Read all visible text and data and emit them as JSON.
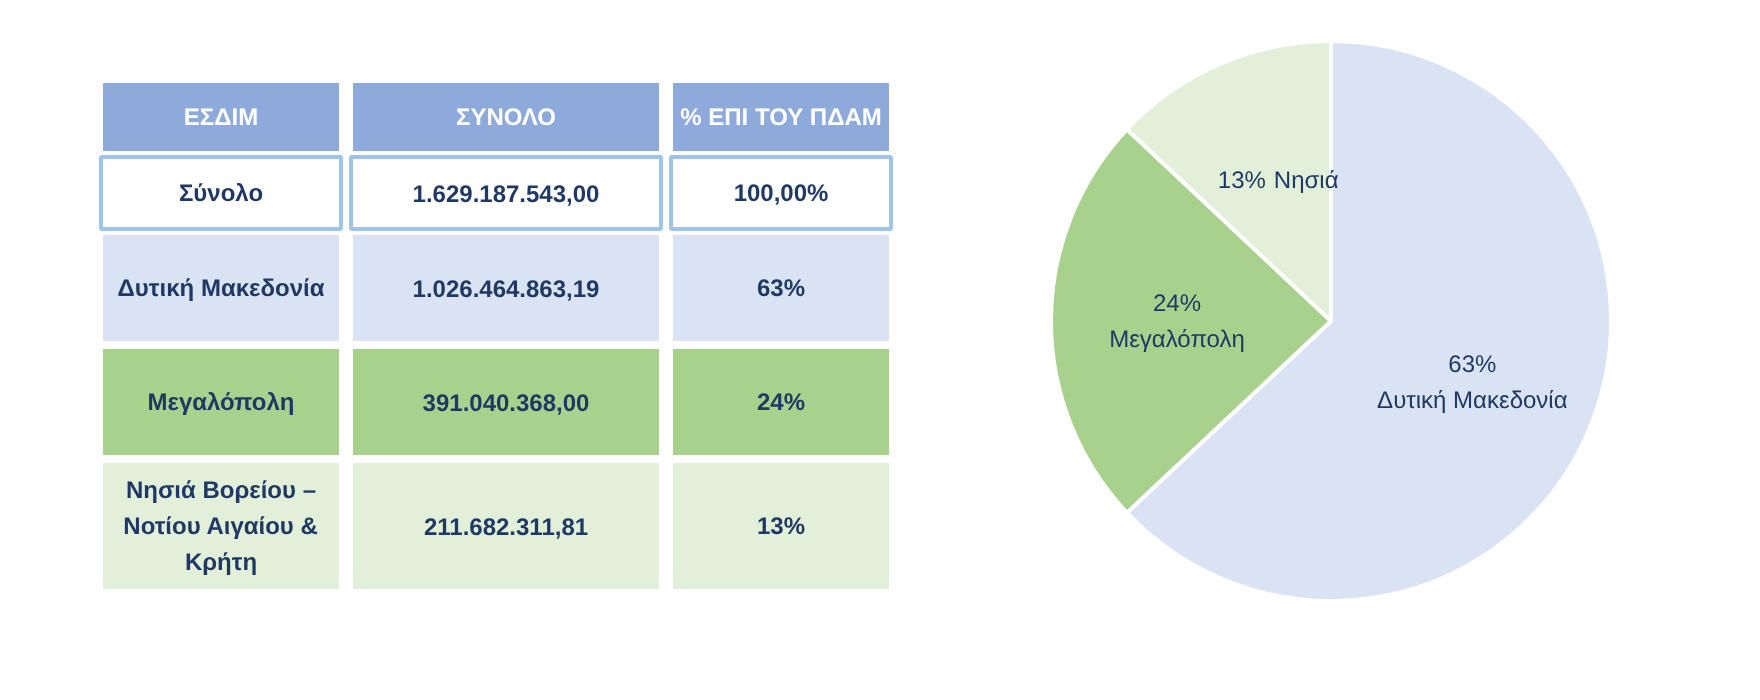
{
  "chart_data": [
    {
      "type": "other",
      "annotations": [
        "ΕΣΔΙΜ",
        "ΣΥΝΟΛΟ",
        "% ΕΠΙ ΤΟΥ ΠΔΑΜ",
        "Σύνολο",
        "1.629.187.543,00",
        "100,00%",
        "Δυτική Μακεδονία",
        "1.026.464.863,19",
        "63%",
        "Μεγαλόπολη",
        "391.040.368,00",
        "24%",
        "Νησιά Βορείου – Νοτίου Αιγαίου & Κρήτη",
        "211.682.311,81",
        "13%"
      ],
      "colors": [
        "#8eaadb",
        "#ffffff",
        "#dae3f3",
        "#a9d18e",
        "#e2f0d9"
      ]
    },
    {
      "type": "pie",
      "categories": [
        "Δυτική Μακεδονία",
        "Μεγαλόπολη",
        "Νησιά"
      ],
      "values": [
        63,
        24,
        13
      ],
      "value_labels": [
        "63%",
        "24%",
        "13%"
      ],
      "data_labels": true,
      "colors": [
        "#dae3f3",
        "#a9d18e",
        "#e2f0d9"
      ]
    }
  ]
}
